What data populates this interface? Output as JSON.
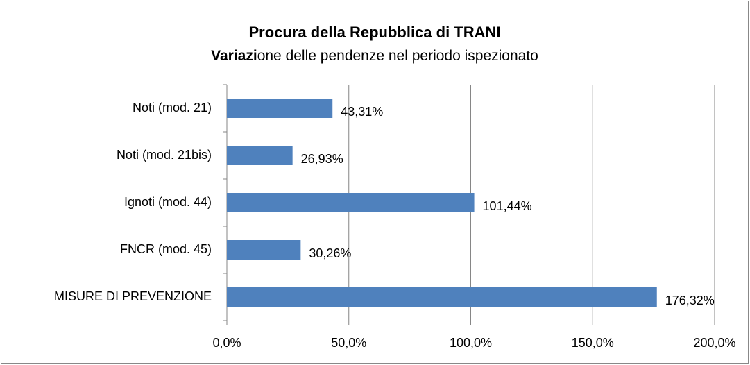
{
  "chart_data": {
    "type": "barh",
    "title": "Procura della Repubblica di TRANI",
    "subtitle": [
      "Variazi",
      "one delle pendenze nel periodo ispezionato"
    ],
    "categories": [
      "Noti (mod. 21)",
      "Noti (mod. 21bis)",
      "Ignoti (mod. 44)",
      "FNCR (mod. 45)",
      "MISURE DI PREVENZIONE"
    ],
    "values": [
      43.31,
      26.93,
      101.44,
      30.26,
      176.32
    ],
    "value_labels": [
      "43,31%",
      "26,93%",
      "101,44%",
      "30,26%",
      "176,32%"
    ],
    "color": "#4f81bd",
    "xlim": [
      0,
      200
    ],
    "xticks": [
      {
        "value": 0,
        "label": "0,0%"
      },
      {
        "value": 50,
        "label": "50,0%"
      },
      {
        "value": 100,
        "label": "100,0%"
      },
      {
        "value": 150,
        "label": "150,0%"
      },
      {
        "value": 200,
        "label": "200,0%"
      }
    ],
    "grid": true
  }
}
